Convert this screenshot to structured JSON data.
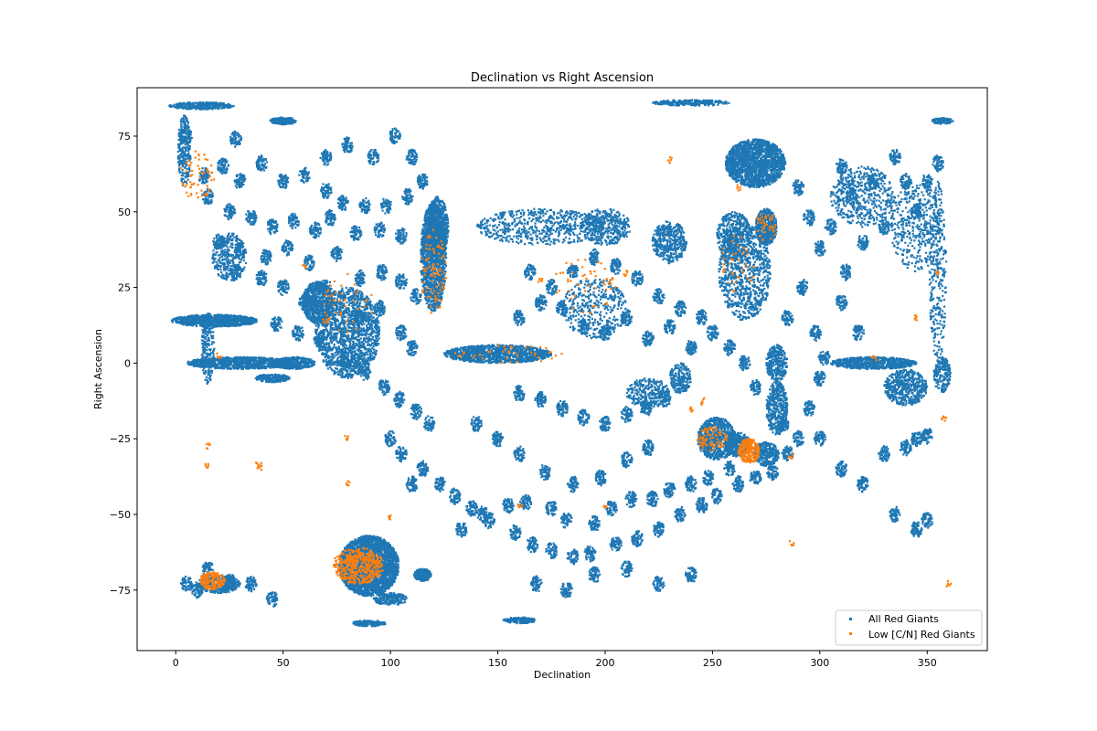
{
  "chart_data": {
    "type": "scatter",
    "title": "Declination vs Right Ascension",
    "xlabel": "Declination",
    "ylabel": "Right Ascension",
    "xlim": [
      -18,
      378
    ],
    "ylim": [
      -95,
      91
    ],
    "xticks": [
      0,
      50,
      100,
      150,
      200,
      250,
      300,
      350
    ],
    "yticks": [
      -75,
      -50,
      -25,
      0,
      25,
      50,
      75
    ],
    "grid": false,
    "legend_position": "lower right",
    "colors": {
      "all": "#1f77b4",
      "low": "#ff7f0e"
    },
    "series": [
      {
        "name": "All Red Giants",
        "color": "#1f77b4",
        "clusters": [
          [
            90,
            -67,
            14,
            10,
            2600
          ],
          [
            120,
            35,
            6,
            18,
            1400
          ],
          [
            122,
            45,
            5,
            10,
            500
          ],
          [
            270,
            66,
            14,
            8,
            1700
          ],
          [
            275,
            45,
            5,
            6,
            500
          ],
          [
            265,
            30,
            12,
            16,
            900
          ],
          [
            230,
            40,
            8,
            7,
            400
          ],
          [
            260,
            42,
            8,
            8,
            400
          ],
          [
            262,
            -27,
            6,
            4,
            400
          ],
          [
            252,
            -25,
            9,
            7,
            700
          ],
          [
            275,
            -30,
            6,
            4,
            300
          ],
          [
            280,
            -15,
            5,
            9,
            400
          ],
          [
            280,
            0,
            5,
            6,
            300
          ],
          [
            66,
            20,
            7,
            7,
            700
          ],
          [
            80,
            10,
            15,
            15,
            1600
          ],
          [
            120,
            40,
            5,
            5,
            300
          ],
          [
            170,
            45,
            30,
            6,
            600
          ],
          [
            200,
            45,
            12,
            6,
            400
          ],
          [
            150,
            3,
            25,
            3,
            1100
          ],
          [
            30,
            0,
            25,
            2,
            900
          ],
          [
            55,
            0,
            10,
            2,
            400
          ],
          [
            45,
            -5,
            8,
            1.3,
            250
          ],
          [
            18,
            14,
            20,
            2,
            900
          ],
          [
            15,
            5,
            3,
            12,
            200
          ],
          [
            12,
            85,
            15,
            1.2,
            300
          ],
          [
            50,
            80,
            6,
            1.2,
            200
          ],
          [
            240,
            86,
            18,
            1,
            250
          ],
          [
            115,
            -70,
            4,
            2,
            200
          ],
          [
            100,
            -78,
            8,
            2,
            200
          ],
          [
            90,
            -86,
            8,
            1,
            150
          ],
          [
            160,
            -85,
            8,
            1,
            150
          ],
          [
            325,
            0,
            20,
            2,
            700
          ],
          [
            340,
            -8,
            10,
            6,
            500
          ],
          [
            357,
            -4,
            4,
            6,
            200
          ],
          [
            355,
            30,
            4,
            30,
            300
          ],
          [
            357,
            80,
            5,
            1,
            100
          ],
          [
            4,
            70,
            3,
            12,
            250
          ],
          [
            25,
            35,
            8,
            8,
            300
          ],
          [
            20,
            -73,
            10,
            3,
            400
          ],
          [
            235,
            -5,
            5,
            5,
            200
          ],
          [
            220,
            -10,
            10,
            5,
            300
          ],
          [
            195,
            18,
            15,
            10,
            400
          ],
          [
            320,
            55,
            15,
            10,
            500
          ],
          [
            345,
            45,
            12,
            15,
            400
          ]
        ],
        "scatter_circles": [
          [
            5,
            75
          ],
          [
            13,
            62
          ],
          [
            22,
            65
          ],
          [
            30,
            60
          ],
          [
            40,
            66
          ],
          [
            50,
            60
          ],
          [
            60,
            62
          ],
          [
            70,
            57
          ],
          [
            78,
            53
          ],
          [
            88,
            52
          ],
          [
            98,
            52
          ],
          [
            108,
            55
          ],
          [
            115,
            60
          ],
          [
            102,
            75
          ],
          [
            110,
            68
          ],
          [
            80,
            72
          ],
          [
            70,
            68
          ],
          [
            92,
            68
          ],
          [
            28,
            74
          ],
          [
            15,
            55
          ],
          [
            25,
            50
          ],
          [
            35,
            48
          ],
          [
            45,
            45
          ],
          [
            55,
            47
          ],
          [
            65,
            44
          ],
          [
            72,
            48
          ],
          [
            84,
            43
          ],
          [
            95,
            44
          ],
          [
            105,
            42
          ],
          [
            20,
            40
          ],
          [
            30,
            37
          ],
          [
            42,
            35
          ],
          [
            52,
            38
          ],
          [
            62,
            33
          ],
          [
            75,
            36
          ],
          [
            86,
            28
          ],
          [
            96,
            30
          ],
          [
            105,
            27
          ],
          [
            112,
            22
          ],
          [
            28,
            30
          ],
          [
            40,
            28
          ],
          [
            50,
            25
          ],
          [
            60,
            20
          ],
          [
            70,
            25
          ],
          [
            85,
            15
          ],
          [
            95,
            18
          ],
          [
            105,
            10
          ],
          [
            110,
            5
          ],
          [
            47,
            13
          ],
          [
            57,
            10
          ],
          [
            67,
            8
          ],
          [
            79,
            0
          ],
          [
            88,
            -3
          ],
          [
            97,
            -8
          ],
          [
            104,
            -12
          ],
          [
            112,
            -16
          ],
          [
            118,
            -20
          ],
          [
            100,
            -25
          ],
          [
            105,
            -30
          ],
          [
            115,
            -35
          ],
          [
            110,
            -40
          ],
          [
            123,
            -40
          ],
          [
            130,
            -44
          ],
          [
            138,
            -48
          ],
          [
            146,
            -52
          ],
          [
            158,
            -56
          ],
          [
            166,
            -60
          ],
          [
            175,
            -62
          ],
          [
            185,
            -64
          ],
          [
            193,
            -63
          ],
          [
            205,
            -60
          ],
          [
            215,
            -58
          ],
          [
            225,
            -55
          ],
          [
            235,
            -50
          ],
          [
            245,
            -47
          ],
          [
            252,
            -44
          ],
          [
            262,
            -40
          ],
          [
            270,
            -38
          ],
          [
            278,
            -36
          ],
          [
            285,
            -30
          ],
          [
            133,
            -55
          ],
          [
            143,
            -50
          ],
          [
            155,
            -47
          ],
          [
            163,
            -46
          ],
          [
            175,
            -48
          ],
          [
            182,
            -52
          ],
          [
            195,
            -53
          ],
          [
            203,
            -48
          ],
          [
            212,
            -45
          ],
          [
            222,
            -45
          ],
          [
            230,
            -42
          ],
          [
            240,
            -40
          ],
          [
            248,
            -38
          ],
          [
            258,
            -35
          ],
          [
            140,
            -20
          ],
          [
            150,
            -25
          ],
          [
            160,
            -30
          ],
          [
            172,
            -36
          ],
          [
            185,
            -40
          ],
          [
            198,
            -38
          ],
          [
            210,
            -32
          ],
          [
            220,
            -28
          ],
          [
            160,
            -10
          ],
          [
            170,
            -12
          ],
          [
            180,
            -15
          ],
          [
            190,
            -18
          ],
          [
            200,
            -20
          ],
          [
            210,
            -17
          ],
          [
            219,
            -15
          ],
          [
            228,
            -12
          ],
          [
            160,
            15
          ],
          [
            170,
            20
          ],
          [
            180,
            18
          ],
          [
            190,
            12
          ],
          [
            200,
            10
          ],
          [
            210,
            15
          ],
          [
            220,
            8
          ],
          [
            230,
            12
          ],
          [
            240,
            5
          ],
          [
            165,
            30
          ],
          [
            175,
            25
          ],
          [
            185,
            30
          ],
          [
            195,
            35
          ],
          [
            205,
            32
          ],
          [
            215,
            28
          ],
          [
            225,
            22
          ],
          [
            235,
            18
          ],
          [
            245,
            15
          ],
          [
            250,
            10
          ],
          [
            258,
            5
          ],
          [
            265,
            0
          ],
          [
            270,
            -8
          ],
          [
            283,
            -20
          ],
          [
            290,
            -25
          ],
          [
            295,
            -15
          ],
          [
            300,
            -5
          ],
          [
            285,
            15
          ],
          [
            292,
            25
          ],
          [
            298,
            10
          ],
          [
            302,
            2
          ],
          [
            310,
            20
          ],
          [
            312,
            30
          ],
          [
            318,
            10
          ],
          [
            320,
            40
          ],
          [
            325,
            60
          ],
          [
            335,
            68
          ],
          [
            340,
            60
          ],
          [
            345,
            50
          ],
          [
            350,
            60
          ],
          [
            355,
            66
          ],
          [
            330,
            45
          ],
          [
            315,
            55
          ],
          [
            310,
            65
          ],
          [
            300,
            38
          ],
          [
            305,
            45
          ],
          [
            295,
            48
          ],
          [
            290,
            58
          ],
          [
            300,
            -25
          ],
          [
            310,
            -35
          ],
          [
            320,
            -40
          ],
          [
            335,
            -50
          ],
          [
            345,
            -55
          ],
          [
            350,
            -52
          ],
          [
            330,
            -30
          ],
          [
            340,
            -28
          ],
          [
            345,
            -25
          ],
          [
            350,
            -24
          ],
          [
            5,
            -73
          ],
          [
            10,
            -75
          ],
          [
            25,
            -72
          ],
          [
            35,
            -73
          ],
          [
            45,
            -78
          ],
          [
            15,
            -68
          ],
          [
            240,
            -70
          ],
          [
            225,
            -73
          ],
          [
            210,
            -68
          ],
          [
            195,
            -70
          ],
          [
            182,
            -75
          ],
          [
            168,
            -73
          ]
        ]
      },
      {
        "name": "Low [C/N] Red Giants",
        "color": "#ff7f0e",
        "clusters": [
          [
            85,
            -67,
            12,
            6,
            420
          ],
          [
            17,
            -72,
            6,
            3,
            150
          ],
          [
            267,
            -29,
            5,
            4,
            220
          ],
          [
            250,
            -25,
            7,
            4,
            80
          ],
          [
            10,
            62,
            8,
            8,
            60
          ],
          [
            120,
            30,
            6,
            14,
            90
          ],
          [
            190,
            25,
            15,
            10,
            50
          ],
          [
            275,
            45,
            5,
            5,
            40
          ],
          [
            262,
            33,
            8,
            10,
            40
          ],
          [
            80,
            20,
            12,
            10,
            40
          ],
          [
            155,
            3,
            25,
            3,
            40
          ]
        ],
        "points": [
          [
            15,
            -34
          ],
          [
            39,
            -34
          ],
          [
            80,
            -40
          ],
          [
            80,
            -25
          ],
          [
            100,
            -51
          ],
          [
            38,
            -34
          ],
          [
            287,
            -60
          ],
          [
            287,
            -31
          ],
          [
            360,
            -73
          ],
          [
            358,
            -18
          ],
          [
            15,
            -27
          ],
          [
            200,
            -48
          ],
          [
            160,
            -47
          ],
          [
            230,
            67
          ],
          [
            262,
            58
          ],
          [
            170,
            27
          ],
          [
            210,
            30
          ],
          [
            240,
            -15
          ],
          [
            245,
            -13
          ],
          [
            325,
            2
          ],
          [
            345,
            15
          ],
          [
            355,
            30
          ],
          [
            20,
            2
          ],
          [
            60,
            32
          ],
          [
            70,
            14
          ]
        ]
      }
    ]
  }
}
